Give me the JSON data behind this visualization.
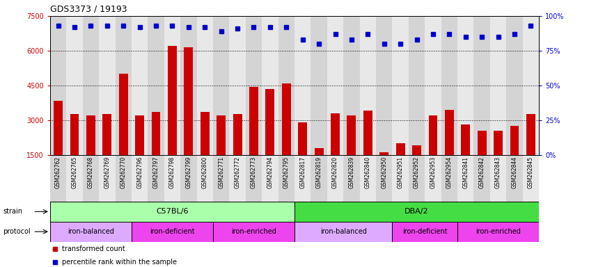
{
  "title": "GDS3373 / 19193",
  "samples": [
    "GSM262762",
    "GSM262765",
    "GSM262768",
    "GSM262769",
    "GSM262770",
    "GSM262796",
    "GSM262797",
    "GSM262798",
    "GSM262799",
    "GSM262800",
    "GSM262771",
    "GSM262772",
    "GSM262773",
    "GSM262794",
    "GSM262795",
    "GSM262817",
    "GSM262819",
    "GSM262820",
    "GSM262839",
    "GSM262840",
    "GSM262950",
    "GSM262951",
    "GSM262952",
    "GSM262953",
    "GSM262954",
    "GSM262841",
    "GSM262842",
    "GSM262843",
    "GSM262844",
    "GSM262845"
  ],
  "bar_values": [
    3850,
    3250,
    3200,
    3250,
    5000,
    3200,
    3350,
    6200,
    6150,
    3350,
    3200,
    3250,
    4450,
    4350,
    4600,
    2900,
    1800,
    3300,
    3200,
    3400,
    1600,
    2000,
    1900,
    3200,
    3450,
    2800,
    2550,
    2550,
    2750,
    3250
  ],
  "percentile_values": [
    93,
    92,
    93,
    93,
    93,
    92,
    93,
    93,
    92,
    92,
    89,
    91,
    92,
    92,
    92,
    83,
    80,
    87,
    83,
    87,
    80,
    80,
    83,
    87,
    87,
    85,
    85,
    85,
    87,
    93
  ],
  "bar_color": "#cc0000",
  "percentile_color": "#0000cc",
  "ylim_left": [
    1500,
    7500
  ],
  "ylim_right": [
    0,
    100
  ],
  "yticks_left": [
    1500,
    3000,
    4500,
    6000,
    7500
  ],
  "yticks_right": [
    0,
    25,
    50,
    75,
    100
  ],
  "grid_values": [
    3000,
    4500,
    6000
  ],
  "strain_groups": [
    {
      "label": "C57BL/6",
      "start": 0,
      "end": 15,
      "color": "#aaffaa"
    },
    {
      "label": "DBA/2",
      "start": 15,
      "end": 30,
      "color": "#44dd44"
    }
  ],
  "protocol_groups": [
    {
      "label": "iron-balanced",
      "start": 0,
      "end": 5,
      "color": "#ddaaff"
    },
    {
      "label": "iron-deficient",
      "start": 5,
      "end": 10,
      "color": "#ee44ee"
    },
    {
      "label": "iron-enriched",
      "start": 10,
      "end": 15,
      "color": "#ee44ee"
    },
    {
      "label": "iron-balanced",
      "start": 15,
      "end": 21,
      "color": "#ddaaff"
    },
    {
      "label": "iron-deficient",
      "start": 21,
      "end": 25,
      "color": "#ee44ee"
    },
    {
      "label": "iron-enriched",
      "start": 25,
      "end": 30,
      "color": "#ee44ee"
    }
  ],
  "legend_items": [
    {
      "label": "transformed count",
      "color": "#cc0000"
    },
    {
      "label": "percentile rank within the sample",
      "color": "#0000cc"
    }
  ],
  "col_bg_even": "#d4d4d4",
  "col_bg_odd": "#e8e8e8"
}
